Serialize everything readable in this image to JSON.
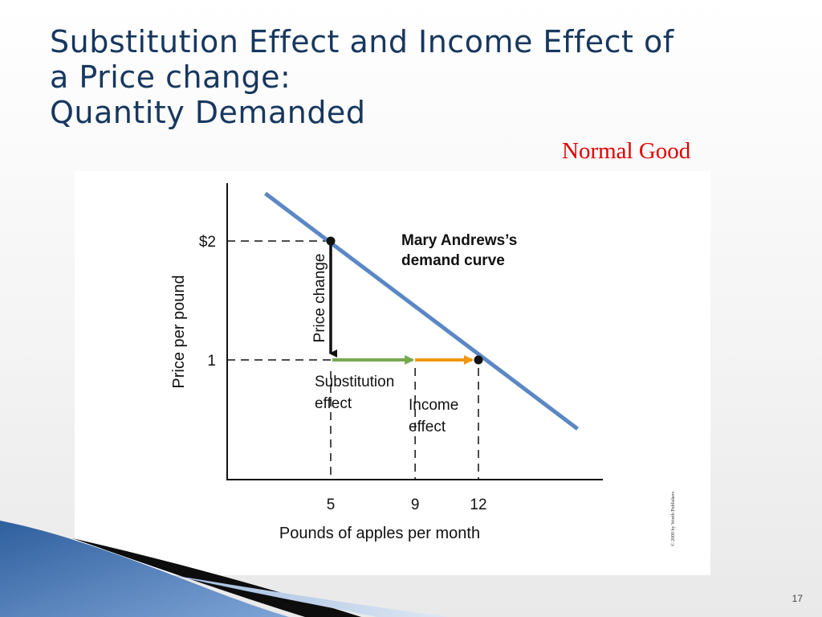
{
  "slide": {
    "title_lines": [
      "Substitution Effect and Income Effect of",
      "a Price change:",
      "Quantity Demanded"
    ],
    "subtitle": "Normal Good",
    "page_number": "17",
    "copyright": "© 2000 by Worth Publishers",
    "colors": {
      "title": "#17375e",
      "subtitle": "#e00000",
      "demand_curve": "#5b87c5",
      "substitution_arrow": "#77a84f",
      "income_arrow": "#f0960f"
    }
  },
  "chart_data": {
    "type": "line",
    "xlabel": "Pounds of apples per month",
    "ylabel": "Price per pound",
    "x_ticks": [
      {
        "value": 5,
        "label": "5"
      },
      {
        "value": 9,
        "label": "9"
      },
      {
        "value": 12,
        "label": "12"
      }
    ],
    "y_ticks": [
      {
        "value": 2,
        "label": "$2"
      },
      {
        "value": 1,
        "label": "1"
      }
    ],
    "series": [
      {
        "name": "Mary Andrews's demand curve",
        "x": [
          1.9,
          16.7
        ],
        "y": [
          2.4,
          0.42
        ]
      }
    ],
    "points": [
      {
        "x": 5,
        "y": 2
      },
      {
        "x": 12,
        "y": 1
      }
    ],
    "annotations": {
      "curve_label_lines": [
        "Mary Andrews’s",
        "demand curve"
      ],
      "price_change": {
        "label": "Price change",
        "x": 5,
        "from_y": 2,
        "to_y": 1
      },
      "substitution_effect": {
        "label_lines": [
          "Substitution",
          "effect"
        ],
        "from_x": 5,
        "to_x": 9,
        "y": 1
      },
      "income_effect": {
        "label_lines": [
          "Income",
          "effect"
        ],
        "from_x": 9,
        "to_x": 12,
        "y": 1
      }
    },
    "xlim": [
      0,
      18
    ],
    "ylim": [
      0,
      2.5
    ],
    "grid": false,
    "legend": "none"
  }
}
